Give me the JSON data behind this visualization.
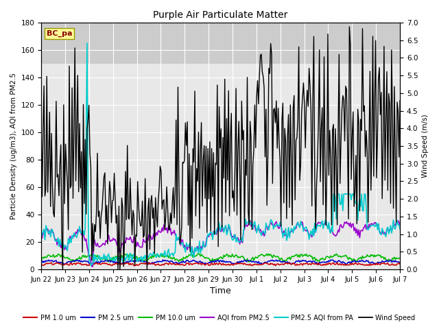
{
  "title": "Purple Air Particulate Matter",
  "xlabel": "Time",
  "ylabel_left": "Particle Density (ug/m3), AQI from PM2.5",
  "ylabel_right": "Wind Speed (m/s)",
  "ylim_left": [
    0,
    180
  ],
  "ylim_right": [
    0,
    7.0
  ],
  "yticks_left": [
    0,
    20,
    40,
    60,
    80,
    100,
    120,
    140,
    160,
    180
  ],
  "yticks_right": [
    0.0,
    0.5,
    1.0,
    1.5,
    2.0,
    2.5,
    3.0,
    3.5,
    4.0,
    4.5,
    5.0,
    5.5,
    6.0,
    6.5,
    7.0
  ],
  "xtick_labels": [
    "Jun 22",
    "Jun 23",
    "Jun 24",
    "Jun 25",
    "Jun 26",
    "Jun 27",
    "Jun 28",
    "Jun 29",
    "Jun 30",
    "Jul 1",
    "Jul 2",
    "Jul 3",
    "Jul 4",
    "Jul 5",
    "Jul 6",
    "Jul 7"
  ],
  "legend_entries": [
    {
      "label": "PM 1.0 um",
      "color": "#cc0000",
      "lw": 1.2
    },
    {
      "label": "PM 2.5 um",
      "color": "#0000cc",
      "lw": 1.2
    },
    {
      "label": "PM 10.0 um",
      "color": "#00bb00",
      "lw": 1.2
    },
    {
      "label": "AQI from PM2.5",
      "color": "#9900cc",
      "lw": 1.2
    },
    {
      "label": "PM2.5 AQI from PA",
      "color": "#00cccc",
      "lw": 1.2
    },
    {
      "label": "Wind Speed",
      "color": "#000000",
      "lw": 1.0
    }
  ],
  "station_label": "BC_pa",
  "background_color": "#ffffff",
  "plot_bg_color": "#e8e8e8",
  "band_color": "#cccccc",
  "band_ylim": [
    150,
    180
  ],
  "figsize": [
    6.4,
    4.8
  ],
  "dpi": 100
}
